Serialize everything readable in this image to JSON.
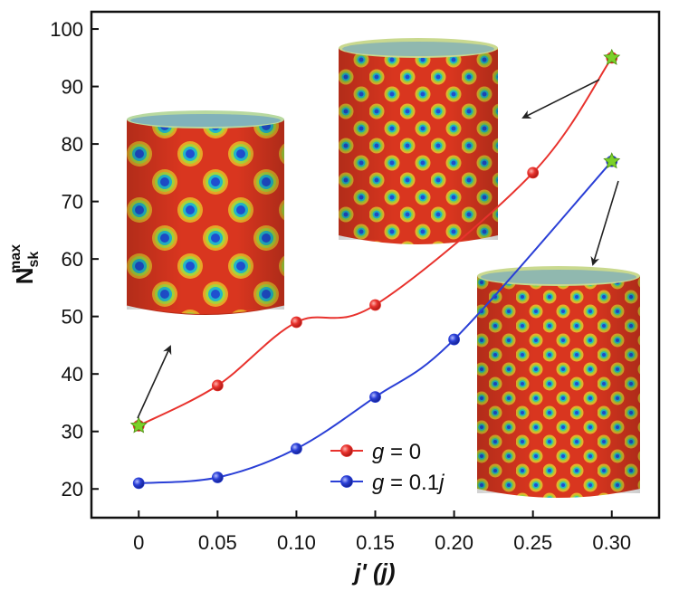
{
  "chart_data": {
    "type": "line",
    "x": [
      0,
      0.05,
      0.1,
      0.15,
      0.2,
      0.25,
      0.3
    ],
    "xticks": [
      "0",
      "0.05",
      "0.10",
      "0.15",
      "0.20",
      "0.25",
      "0.30"
    ],
    "yticks": [
      "20",
      "30",
      "40",
      "50",
      "60",
      "70",
      "80",
      "90",
      "100"
    ],
    "xlim": [
      -0.03,
      0.33
    ],
    "ylim": [
      15,
      103
    ],
    "xlabel_main": "j'",
    "xlabel_unit": " (j)",
    "ylabel_main": "N",
    "ylabel_sup": "max",
    "ylabel_sub": "sk",
    "grid": false,
    "legend_position": "bottom-center",
    "series": [
      {
        "name": "g = 0",
        "legend_italic": "g",
        "legend_rest": " = 0",
        "color": "#e8322d",
        "x": [
          0,
          0.05,
          0.1,
          0.15,
          0.25,
          0.3
        ],
        "values": [
          31,
          38,
          49,
          52,
          75,
          95
        ]
      },
      {
        "name": "g = 0.1j",
        "legend_italic": "g",
        "legend_rest": " = 0.1",
        "legend_italic2": "j",
        "color": "#2a3fd6",
        "x": [
          0,
          0.05,
          0.1,
          0.15,
          0.2,
          0.3
        ],
        "values": [
          21,
          22,
          27,
          36,
          46,
          77
        ]
      }
    ],
    "highlight_points": [
      {
        "x": 0,
        "y": 31,
        "color": "#7bd12a"
      },
      {
        "x": 0.3,
        "y": 95,
        "color": "#7bd12a"
      },
      {
        "x": 0.3,
        "y": 77,
        "color": "#7bd12a"
      }
    ],
    "insets": [
      {
        "name": "cylinder-inset-low",
        "x_of": 0,
        "y_of": 31
      },
      {
        "name": "cylinder-inset-top",
        "x_of": 0.3,
        "y_of": 95
      },
      {
        "name": "cylinder-inset-right",
        "x_of": 0.3,
        "y_of": 77
      }
    ]
  }
}
